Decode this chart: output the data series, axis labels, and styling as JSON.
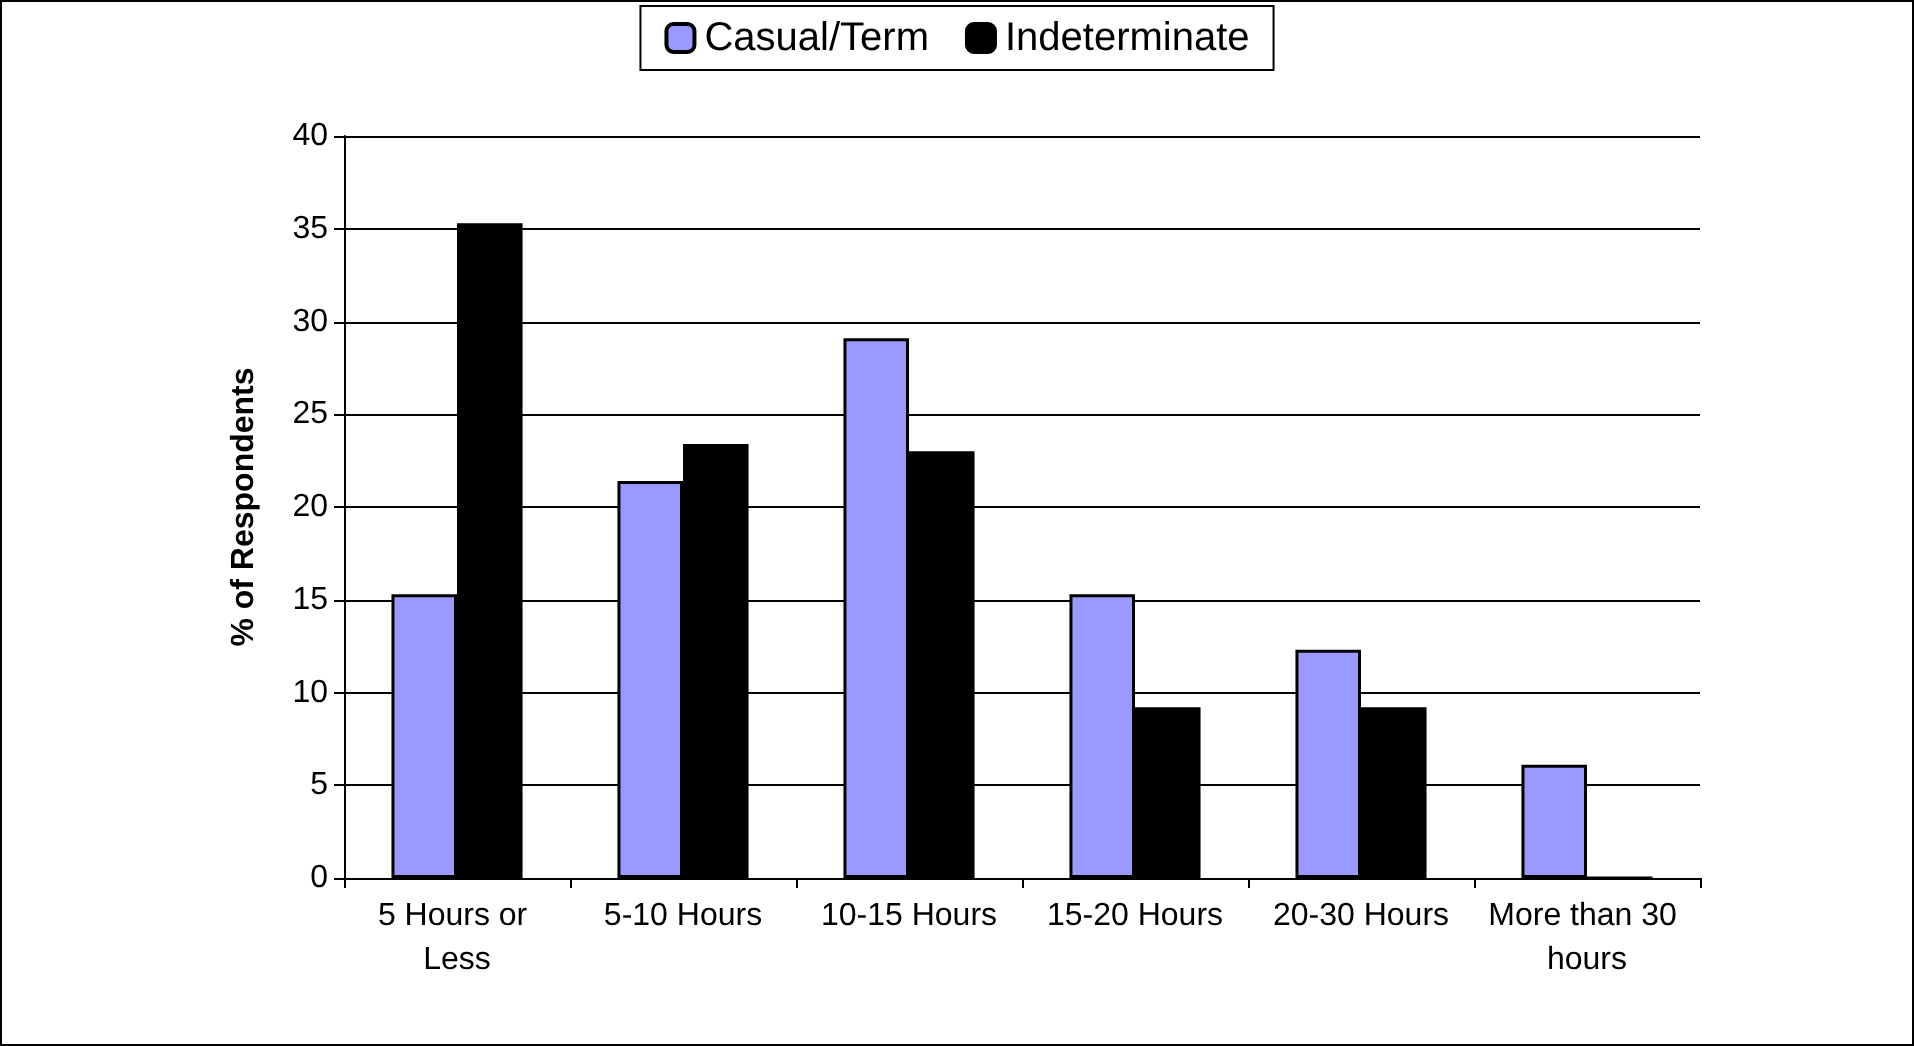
{
  "chart_data": {
    "type": "bar",
    "ylabel": "% of Respondents",
    "categories": [
      "5 Hours or Less",
      "5-10 Hours",
      "10-15 Hours",
      "15-20 Hours",
      "20-30 Hours",
      "More than 30 hours"
    ],
    "series": [
      {
        "name": "Casual/Term",
        "color": "#9999ff",
        "values": [
          15.3,
          21.4,
          29.1,
          15.3,
          12.3,
          6.1
        ]
      },
      {
        "name": "Indeterminate",
        "color": "#000000",
        "values": [
          35.3,
          23.4,
          23.0,
          9.2,
          9.2,
          0
        ]
      }
    ],
    "ylim": [
      0,
      40
    ],
    "yticks": [
      0,
      5,
      10,
      15,
      20,
      25,
      30,
      35,
      40
    ],
    "grid": "y",
    "legend": "top"
  }
}
